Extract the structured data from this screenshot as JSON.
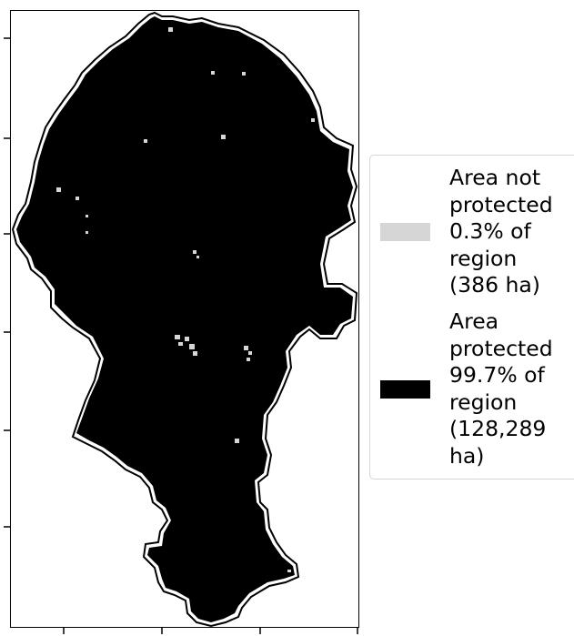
{
  "map": {
    "colors": {
      "protected": "#000000",
      "not_protected": "#d6d6d6",
      "background": "#ffffff"
    }
  },
  "legend": {
    "items": [
      {
        "color": "#d6d6d6",
        "lines": [
          "Area not",
          "protected",
          "0.3% of",
          "region",
          "(386 ha)"
        ]
      },
      {
        "color": "#000000",
        "lines": [
          "Area",
          "protected",
          "99.7% of",
          "region",
          "(128,289",
          "ha)"
        ]
      }
    ]
  }
}
